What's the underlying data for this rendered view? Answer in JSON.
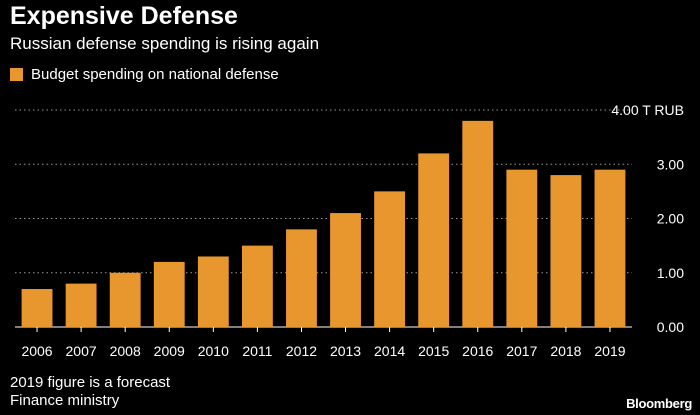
{
  "title": "Expensive Defense",
  "subtitle": "Russian defense spending is rising again",
  "colors": {
    "bar": "#E8962E",
    "background": "#000000",
    "text": "#FFFFFF",
    "grid": "#9A9A9A"
  },
  "footer": {
    "note1": "2019 figure is a forecast",
    "note2": "Finance ministry",
    "brand": "Bloomberg"
  },
  "chart_data": {
    "type": "bar",
    "title": "Expensive Defense",
    "subtitle": "Russian defense spending is rising again",
    "legend": "Budget spending on national defense",
    "legend_position": "top-left",
    "categories": [
      "2006",
      "2007",
      "2008",
      "2009",
      "2010",
      "2011",
      "2012",
      "2013",
      "2014",
      "2015",
      "2016",
      "2017",
      "2018",
      "2019"
    ],
    "values": [
      0.7,
      0.8,
      1.0,
      1.2,
      1.3,
      1.5,
      1.8,
      2.1,
      2.5,
      3.2,
      3.8,
      2.9,
      2.8,
      2.9
    ],
    "xlabel": "",
    "ylabel": "T RUB",
    "ylim": [
      0,
      4
    ],
    "yticks": [
      0,
      1,
      2,
      3,
      4
    ],
    "ytick_labels": [
      "0.00",
      "1.00",
      "2.00",
      "3.00",
      "4.00 T RUB"
    ],
    "y_axis_side": "right",
    "grid": true
  }
}
